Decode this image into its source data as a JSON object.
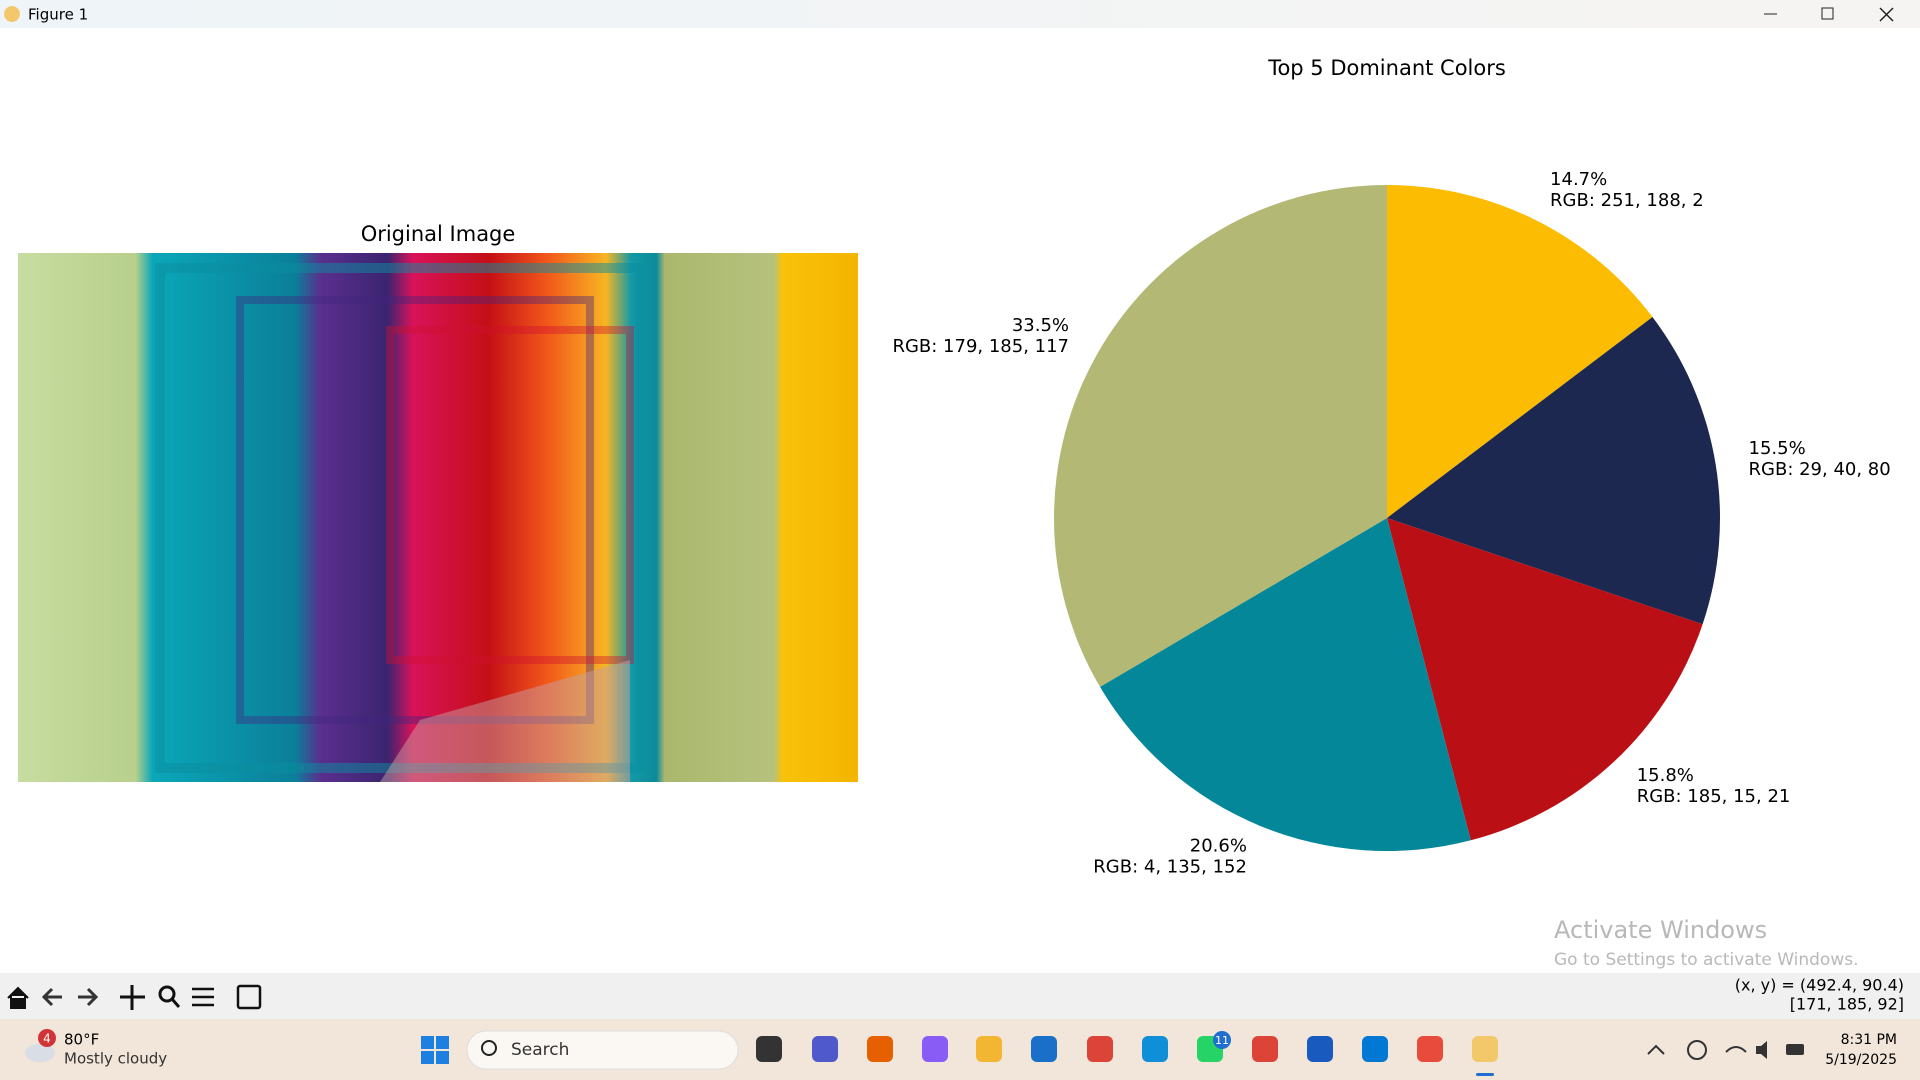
{
  "window": {
    "title": "Figure 1"
  },
  "chart_data": [
    {
      "type": "image",
      "title": "Original Image"
    },
    {
      "type": "pie",
      "title": "Top 5 Dominant Colors",
      "categories": [
        "RGB: 251, 188, 2",
        "RGB: 29, 40, 80",
        "RGB: 185, 15, 21",
        "RGB: 4, 135, 152",
        "RGB: 179, 185, 117"
      ],
      "values": [
        14.7,
        15.5,
        15.8,
        20.6,
        33.5
      ],
      "value_labels": [
        "14.7%",
        "15.5%",
        "15.8%",
        "20.6%",
        "33.5%"
      ],
      "colors": [
        "#fbbc02",
        "#1d2850",
        "#b90f15",
        "#048798",
        "#b3b975"
      ],
      "startangle": 90,
      "counterclock": false
    }
  ],
  "status": {
    "coords": "(x, y) = (492.4, 90.4)",
    "pixel": "[171, 185, 92]"
  },
  "watermark": {
    "title": "Activate Windows",
    "subtitle": "Go to Settings to activate Windows."
  },
  "taskbar": {
    "weather_badge": "4",
    "temperature": "80°F",
    "condition": "Mostly cloudy",
    "search": "Search",
    "whatsapp_badge": "11",
    "time": "8:31 PM",
    "date": "5/19/2025"
  }
}
